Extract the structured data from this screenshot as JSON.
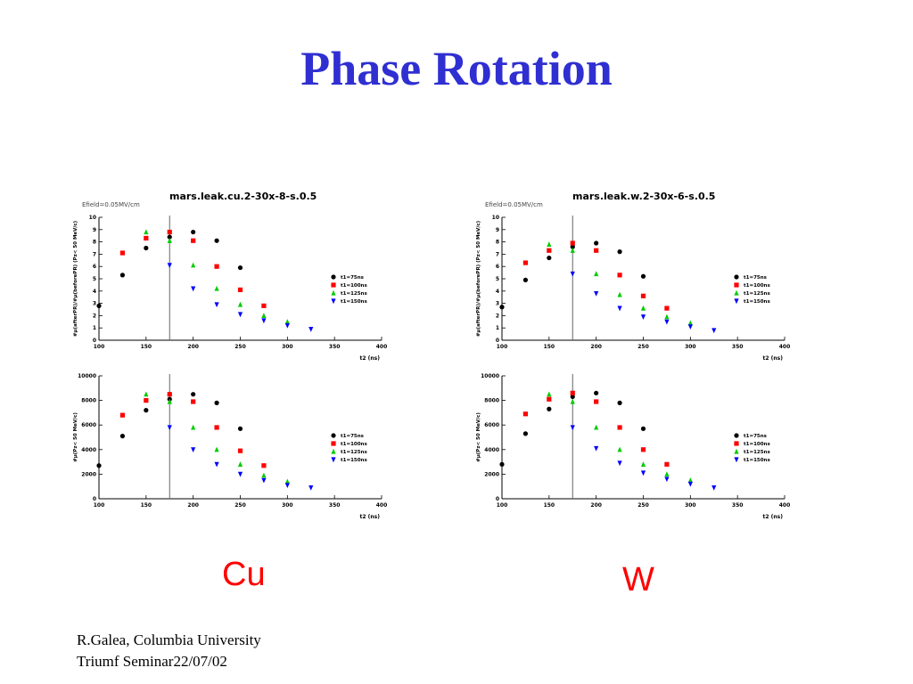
{
  "slide": {
    "title": "Phase Rotation",
    "material_left": "Cu",
    "material_right": "W",
    "footer_line1": "R.Galea, Columbia University",
    "footer_line2": "Triumf Seminar22/07/02"
  },
  "colors": {
    "title": "#2f2fd2",
    "material_label": "#ff0000",
    "t1_75": "#000000",
    "t1_100": "#ff0000",
    "t1_125": "#00cc00",
    "t1_150": "#0000ff"
  },
  "chart_data": [
    {
      "id": "cu-ratio",
      "type": "scatter",
      "title": "mars.leak.cu.2-30x-8-s.0.5",
      "subtitle": "Efield=0.05MV/cm",
      "xlabel": "t2 (ns)",
      "ylabel": "#μ(afterPR)/#μ(beforePR) (Pz< 50 MeV/c)",
      "xlim": [
        100,
        400
      ],
      "ylim": [
        0,
        10
      ],
      "xticks": [
        100,
        150,
        200,
        250,
        300,
        350,
        400
      ],
      "yticks": [
        0,
        1,
        2,
        3,
        4,
        5,
        6,
        7,
        8,
        9,
        10
      ],
      "vline": 175,
      "legend_position": "right",
      "series": [
        {
          "name": "t1=75ns",
          "marker": "circle",
          "color": "#000000",
          "x": [
            100,
            125,
            150,
            175,
            200,
            225,
            250
          ],
          "y": [
            2.8,
            5.3,
            7.5,
            8.4,
            8.8,
            8.1,
            5.9
          ]
        },
        {
          "name": "t1=100ns",
          "marker": "square",
          "color": "#ff0000",
          "x": [
            125,
            150,
            175,
            200,
            225,
            250,
            275
          ],
          "y": [
            7.1,
            8.3,
            8.8,
            8.1,
            6.0,
            4.1,
            2.8
          ]
        },
        {
          "name": "t1=125ns",
          "marker": "triangle",
          "color": "#00cc00",
          "x": [
            150,
            175,
            200,
            225,
            250,
            275,
            300
          ],
          "y": [
            8.8,
            8.1,
            6.1,
            4.2,
            2.9,
            2.0,
            1.5
          ]
        },
        {
          "name": "t1=150ns",
          "marker": "triangle-down",
          "color": "#0000ff",
          "x": [
            175,
            200,
            225,
            250,
            275,
            300,
            325
          ],
          "y": [
            6.1,
            4.2,
            2.9,
            2.1,
            1.6,
            1.2,
            0.9
          ]
        }
      ]
    },
    {
      "id": "w-ratio",
      "type": "scatter",
      "title": "mars.leak.w.2-30x-6-s.0.5",
      "subtitle": "Efield=0.05MV/cm",
      "xlabel": "t2 (ns)",
      "ylabel": "#μ(afterPR)/#μ(beforePR) (Pz< 50 MeV/c)",
      "xlim": [
        100,
        400
      ],
      "ylim": [
        0,
        10
      ],
      "xticks": [
        100,
        150,
        200,
        250,
        300,
        350,
        400
      ],
      "yticks": [
        0,
        1,
        2,
        3,
        4,
        5,
        6,
        7,
        8,
        9,
        10
      ],
      "vline": 175,
      "legend_position": "right",
      "series": [
        {
          "name": "t1=75ns",
          "marker": "circle",
          "color": "#000000",
          "x": [
            100,
            125,
            150,
            175,
            200,
            225,
            250
          ],
          "y": [
            2.7,
            4.9,
            6.7,
            7.6,
            7.9,
            7.2,
            5.2
          ]
        },
        {
          "name": "t1=100ns",
          "marker": "square",
          "color": "#ff0000",
          "x": [
            125,
            150,
            175,
            200,
            225,
            250,
            275
          ],
          "y": [
            6.3,
            7.3,
            7.9,
            7.3,
            5.3,
            3.6,
            2.6
          ]
        },
        {
          "name": "t1=125ns",
          "marker": "triangle",
          "color": "#00cc00",
          "x": [
            150,
            175,
            200,
            225,
            250,
            275,
            300
          ],
          "y": [
            7.8,
            7.3,
            5.4,
            3.7,
            2.6,
            1.9,
            1.4
          ]
        },
        {
          "name": "t1=150ns",
          "marker": "triangle-down",
          "color": "#0000ff",
          "x": [
            175,
            200,
            225,
            250,
            275,
            300,
            325
          ],
          "y": [
            5.4,
            3.8,
            2.6,
            1.9,
            1.5,
            1.1,
            0.8
          ]
        }
      ]
    },
    {
      "id": "cu-count",
      "type": "scatter",
      "ylabel": "#μ(Pz< 50 MeV/c)",
      "xlabel": "t2 (ns)",
      "xlim": [
        100,
        400
      ],
      "ylim": [
        0,
        10000
      ],
      "xticks": [
        100,
        150,
        200,
        250,
        300,
        350,
        400
      ],
      "yticks": [
        0,
        2000,
        4000,
        6000,
        8000,
        10000
      ],
      "vline": 175,
      "legend_position": "right",
      "series": [
        {
          "name": "t1=75ns",
          "marker": "circle",
          "color": "#000000",
          "x": [
            100,
            125,
            150,
            175,
            200,
            225,
            250
          ],
          "y": [
            2700,
            5100,
            7200,
            8100,
            8500,
            7800,
            5700
          ]
        },
        {
          "name": "t1=100ns",
          "marker": "square",
          "color": "#ff0000",
          "x": [
            125,
            150,
            175,
            200,
            225,
            250,
            275
          ],
          "y": [
            6800,
            8000,
            8500,
            7900,
            5800,
            3900,
            2700
          ]
        },
        {
          "name": "t1=125ns",
          "marker": "triangle",
          "color": "#00cc00",
          "x": [
            150,
            175,
            200,
            225,
            250,
            275,
            300
          ],
          "y": [
            8500,
            7900,
            5800,
            4000,
            2800,
            1900,
            1400
          ]
        },
        {
          "name": "t1=150ns",
          "marker": "triangle-down",
          "color": "#0000ff",
          "x": [
            175,
            200,
            225,
            250,
            275,
            300,
            325
          ],
          "y": [
            5800,
            4000,
            2800,
            2000,
            1500,
            1100,
            900
          ]
        }
      ]
    },
    {
      "id": "w-count",
      "type": "scatter",
      "ylabel": "#μ(Pz< 50 MeV/c)",
      "xlabel": "t2 (ns)",
      "xlim": [
        100,
        400
      ],
      "ylim": [
        0,
        10000
      ],
      "xticks": [
        100,
        150,
        200,
        250,
        300,
        350,
        400
      ],
      "yticks": [
        0,
        2000,
        4000,
        6000,
        8000,
        10000
      ],
      "vline": 175,
      "legend_position": "right",
      "series": [
        {
          "name": "t1=75ns",
          "marker": "circle",
          "color": "#000000",
          "x": [
            100,
            125,
            150,
            175,
            200,
            225,
            250
          ],
          "y": [
            2800,
            5300,
            7300,
            8300,
            8600,
            7800,
            5700
          ]
        },
        {
          "name": "t1=100ns",
          "marker": "square",
          "color": "#ff0000",
          "x": [
            125,
            150,
            175,
            200,
            225,
            250,
            275
          ],
          "y": [
            6900,
            8100,
            8600,
            7900,
            5800,
            4000,
            2800
          ]
        },
        {
          "name": "t1=125ns",
          "marker": "triangle",
          "color": "#00cc00",
          "x": [
            150,
            175,
            200,
            225,
            250,
            275,
            300
          ],
          "y": [
            8500,
            7900,
            5800,
            4000,
            2800,
            2000,
            1500
          ]
        },
        {
          "name": "t1=150ns",
          "marker": "triangle-down",
          "color": "#0000ff",
          "x": [
            175,
            200,
            225,
            250,
            275,
            300,
            325
          ],
          "y": [
            5800,
            4100,
            2900,
            2100,
            1600,
            1200,
            900
          ]
        }
      ]
    }
  ]
}
